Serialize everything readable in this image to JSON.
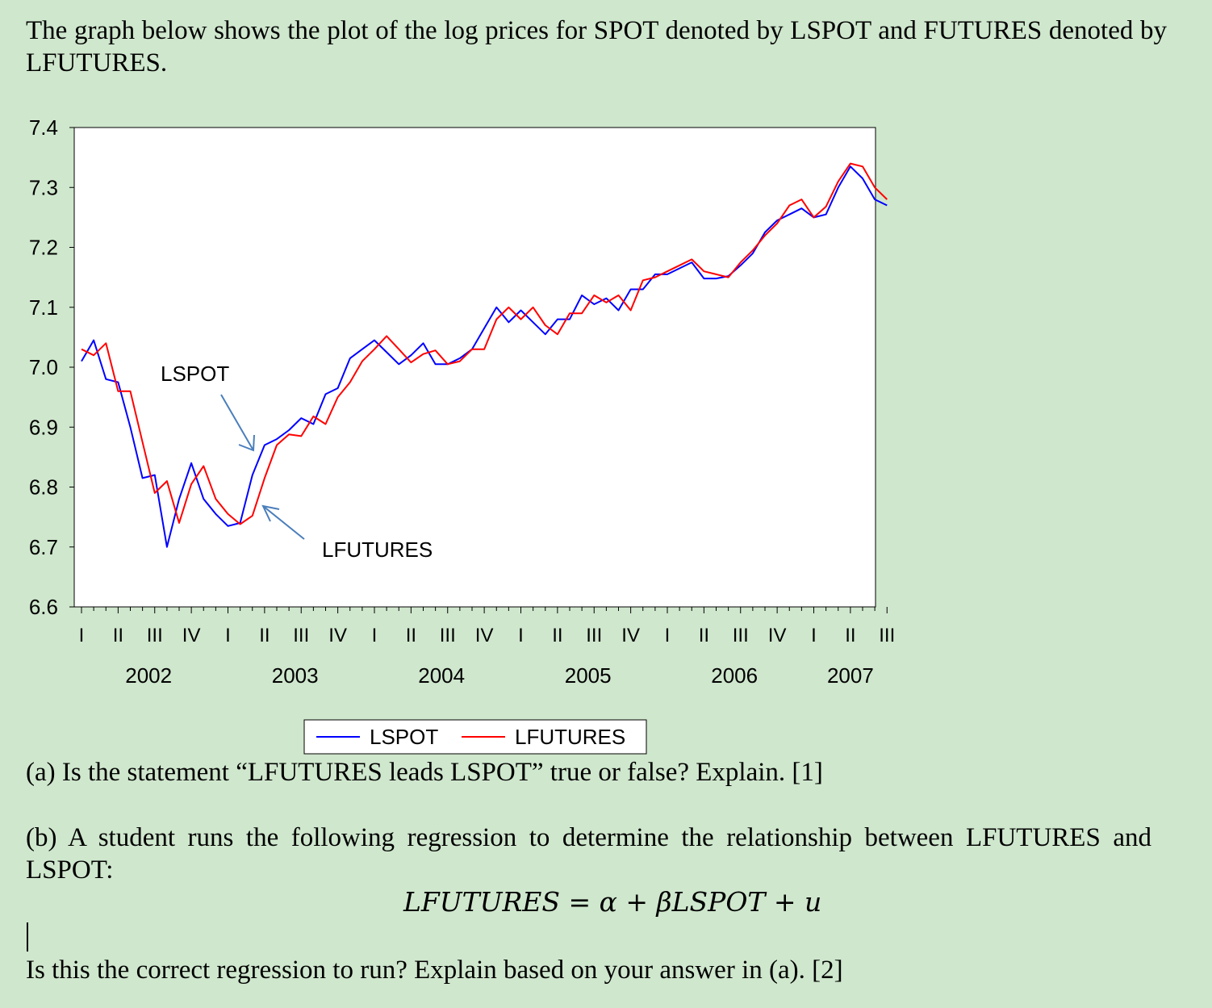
{
  "intro_text": "The graph below shows the plot of the log prices for SPOT denoted by LSPOT and FUTURES denoted by LFUTURES.",
  "question_a": "(a) Is the statement “LFUTURES leads LSPOT” true or false? Explain. [1]",
  "question_b": "(b) A student runs the following regression to determine the relationship between LFUTURES and LSPOT:",
  "equation": "LFUTURES = α + βLSPOT + u",
  "question_c": "Is this the correct regression to run? Explain based on your answer in (a). [2]",
  "chart_data": {
    "type": "line",
    "ylim": [
      6.6,
      7.4
    ],
    "y_ticks": [
      "6.6",
      "6.7",
      "6.8",
      "6.9",
      "7.0",
      "7.1",
      "7.2",
      "7.3",
      "7.4"
    ],
    "quarter_labels": [
      "I",
      "II",
      "III",
      "IV",
      "I",
      "II",
      "III",
      "IV",
      "I",
      "II",
      "III",
      "IV",
      "I",
      "II",
      "III",
      "IV",
      "I",
      "II",
      "III",
      "IV",
      "I",
      "II",
      "III"
    ],
    "year_labels": [
      "2002",
      "2003",
      "2004",
      "2005",
      "2006",
      "2007"
    ],
    "x_periods": [
      "2002-01",
      "2002-02",
      "2002-03",
      "2002-04",
      "2002-05",
      "2002-06",
      "2002-07",
      "2002-08",
      "2002-09",
      "2002-10",
      "2002-11",
      "2002-12",
      "2003-01",
      "2003-02",
      "2003-03",
      "2003-04",
      "2003-05",
      "2003-06",
      "2003-07",
      "2003-08",
      "2003-09",
      "2003-10",
      "2003-11",
      "2003-12",
      "2004-01",
      "2004-02",
      "2004-03",
      "2004-04",
      "2004-05",
      "2004-06",
      "2004-07",
      "2004-08",
      "2004-09",
      "2004-10",
      "2004-11",
      "2004-12",
      "2005-01",
      "2005-02",
      "2005-03",
      "2005-04",
      "2005-05",
      "2005-06",
      "2005-07",
      "2005-08",
      "2005-09",
      "2005-10",
      "2005-11",
      "2005-12",
      "2006-01",
      "2006-02",
      "2006-03",
      "2006-04",
      "2006-05",
      "2006-06",
      "2006-07",
      "2006-08",
      "2006-09",
      "2006-10",
      "2006-11",
      "2006-12",
      "2007-01",
      "2007-02",
      "2007-03",
      "2007-04",
      "2007-05",
      "2007-06",
      "2007-07"
    ],
    "series": [
      {
        "name": "LSPOT",
        "color": "#0000ff",
        "values": [
          7.01,
          7.045,
          6.98,
          6.975,
          6.9,
          6.815,
          6.82,
          6.7,
          6.78,
          6.84,
          6.78,
          6.755,
          6.735,
          6.74,
          6.82,
          6.87,
          6.88,
          6.895,
          6.915,
          6.905,
          6.955,
          6.965,
          7.015,
          7.03,
          7.045,
          7.025,
          7.005,
          7.02,
          7.04,
          7.005,
          7.005,
          7.015,
          7.03,
          7.065,
          7.1,
          7.075,
          7.095,
          7.075,
          7.055,
          7.08,
          7.08,
          7.12,
          7.105,
          7.115,
          7.095,
          7.13,
          7.13,
          7.155,
          7.155,
          7.165,
          7.175,
          7.148,
          7.148,
          7.152,
          7.17,
          7.19,
          7.225,
          7.245,
          7.255,
          7.265,
          7.25,
          7.255,
          7.3,
          7.335,
          7.315,
          7.28,
          7.27
        ]
      },
      {
        "name": "LFUTURES",
        "color": "#ff0000",
        "values": [
          7.03,
          7.02,
          7.04,
          6.96,
          6.96,
          6.875,
          6.79,
          6.81,
          6.74,
          6.805,
          6.835,
          6.78,
          6.755,
          6.738,
          6.752,
          6.815,
          6.87,
          6.888,
          6.885,
          6.918,
          6.905,
          6.95,
          6.975,
          7.01,
          7.03,
          7.052,
          7.03,
          7.008,
          7.022,
          7.028,
          7.005,
          7.01,
          7.03,
          7.03,
          7.08,
          7.1,
          7.08,
          7.1,
          7.07,
          7.055,
          7.09,
          7.09,
          7.12,
          7.108,
          7.12,
          7.095,
          7.145,
          7.15,
          7.16,
          7.17,
          7.18,
          7.16,
          7.155,
          7.15,
          7.175,
          7.195,
          7.22,
          7.24,
          7.27,
          7.28,
          7.25,
          7.268,
          7.31,
          7.34,
          7.335,
          7.3,
          7.28
        ]
      }
    ],
    "annotations": [
      "LSPOT",
      "LFUTURES"
    ],
    "legend": {
      "position": "bottom-center",
      "entries": [
        "LSPOT",
        "LFUTURES"
      ]
    }
  }
}
